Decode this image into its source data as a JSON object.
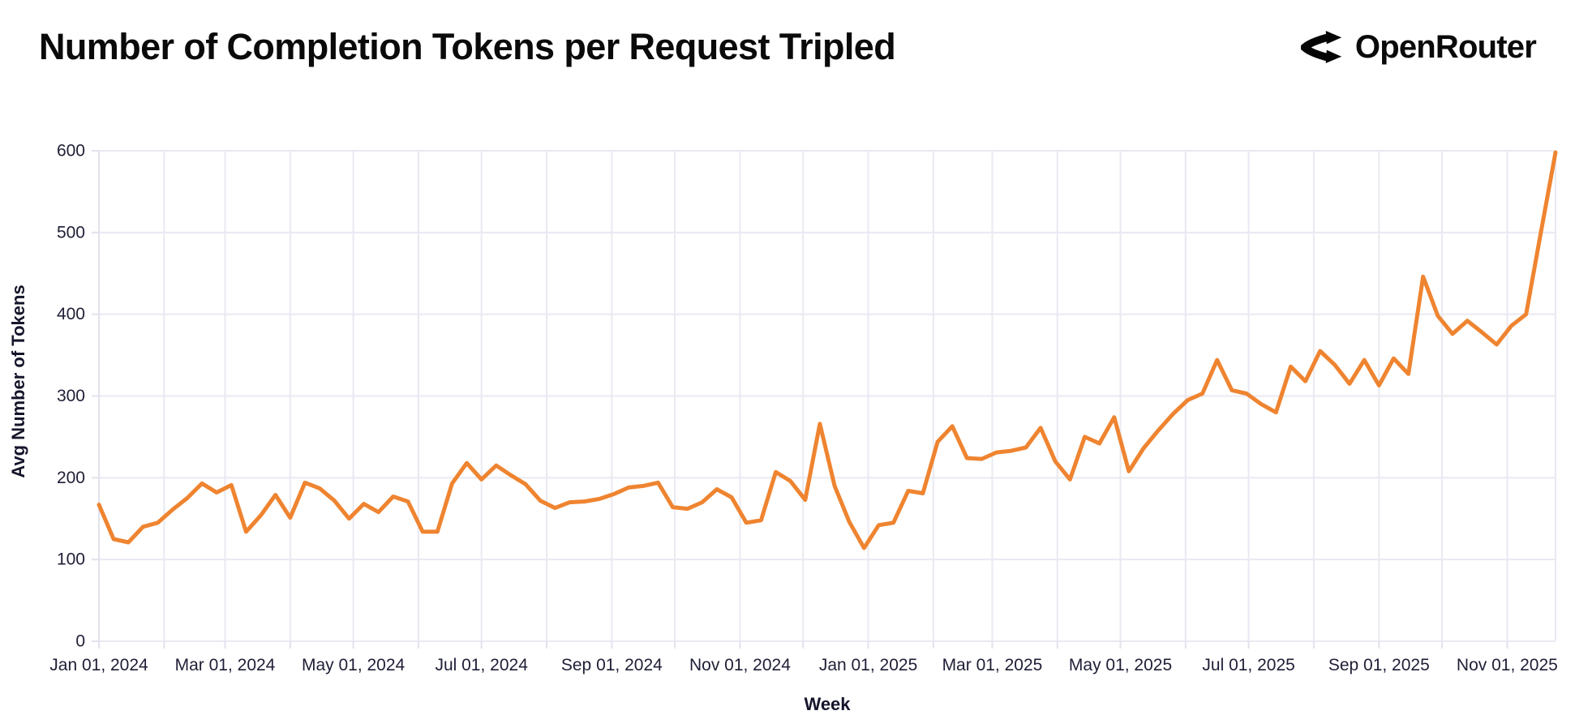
{
  "header": {
    "title": "Number of Completion Tokens per Request Tripled",
    "logo_text": "OpenRouter"
  },
  "chart_data": {
    "type": "line",
    "title": "Number of Completion Tokens per Request Tripled",
    "xlabel": "Week",
    "ylabel": "Avg Number of Tokens",
    "ylim": [
      0,
      600
    ],
    "yticks": [
      0,
      100,
      200,
      300,
      400,
      500,
      600
    ],
    "grid": true,
    "legend": "none",
    "line_color": "#EF8430",
    "grid_color": "#E9E9F2",
    "axis_line_color": "#E2E2EC",
    "tick_text_color": "#1e1e36",
    "cadence": "weekly",
    "x_start": "Jan 01, 2024",
    "x_end": "Nov 24, 2025",
    "x_total_days": 693,
    "month_ticks": [
      {
        "d": 0,
        "label": "Jan 01, 2024"
      },
      {
        "d": 31,
        "label": ""
      },
      {
        "d": 60,
        "label": "Mar 01, 2024"
      },
      {
        "d": 91,
        "label": ""
      },
      {
        "d": 121,
        "label": "May 01, 2024"
      },
      {
        "d": 152,
        "label": ""
      },
      {
        "d": 182,
        "label": "Jul 01, 2024"
      },
      {
        "d": 213,
        "label": ""
      },
      {
        "d": 244,
        "label": "Sep 01, 2024"
      },
      {
        "d": 274,
        "label": ""
      },
      {
        "d": 305,
        "label": "Nov 01, 2024"
      },
      {
        "d": 335,
        "label": ""
      },
      {
        "d": 366,
        "label": "Jan 01, 2025"
      },
      {
        "d": 397,
        "label": ""
      },
      {
        "d": 425,
        "label": "Mar 01, 2025"
      },
      {
        "d": 456,
        "label": ""
      },
      {
        "d": 486,
        "label": "May 01, 2025"
      },
      {
        "d": 517,
        "label": ""
      },
      {
        "d": 547,
        "label": "Jul 01, 2025"
      },
      {
        "d": 578,
        "label": ""
      },
      {
        "d": 609,
        "label": "Sep 01, 2025"
      },
      {
        "d": 639,
        "label": ""
      },
      {
        "d": 670,
        "label": "Nov 01, 2025"
      }
    ],
    "series": [
      {
        "name": "Avg Number of Tokens",
        "values": [
          167,
          125,
          121,
          140,
          145,
          161,
          175,
          193,
          182,
          191,
          134,
          154,
          179,
          151,
          194,
          187,
          172,
          150,
          168,
          158,
          177,
          171,
          134,
          134,
          193,
          218,
          198,
          215,
          203,
          192,
          172,
          163,
          170,
          171,
          174,
          180,
          188,
          190,
          194,
          164,
          162,
          170,
          186,
          176,
          145,
          148,
          207,
          196,
          173,
          266,
          190,
          146,
          114,
          142,
          145,
          184,
          181,
          244,
          263,
          224,
          223,
          231,
          233,
          237,
          261,
          220,
          198,
          250,
          242,
          274,
          208,
          236,
          258,
          278,
          295,
          303,
          344,
          307,
          303,
          290,
          280,
          336,
          318,
          355,
          338,
          315,
          344,
          313,
          346,
          327,
          446,
          398,
          376,
          392,
          378,
          363,
          386,
          400,
          500,
          598
        ]
      }
    ]
  }
}
